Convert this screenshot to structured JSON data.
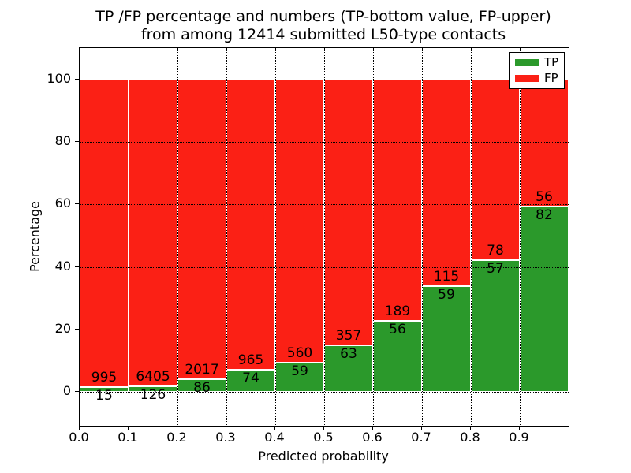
{
  "chart_data": {
    "type": "bar",
    "variant": "stacked-100-percent",
    "title": "TP /FP percentage and numbers (TP-bottom value, FP-upper)",
    "subtitle": "from among 12414 submitted L50-type contacts",
    "xlabel": "Predicted probability",
    "ylabel": "Percentage",
    "xlim": [
      0.0,
      1.0
    ],
    "ylim": [
      -11,
      110
    ],
    "x_tick_labels": [
      "0.0",
      "0.1",
      "0.2",
      "0.3",
      "0.4",
      "0.5",
      "0.6",
      "0.7",
      "0.8",
      "0.9"
    ],
    "y_ticks": [
      0,
      20,
      40,
      60,
      80,
      100
    ],
    "grid_style": "dotted",
    "bin_ranges": [
      "0.0-0.1",
      "0.1-0.2",
      "0.2-0.3",
      "0.3-0.4",
      "0.4-0.5",
      "0.5-0.6",
      "0.6-0.7",
      "0.7-0.8",
      "0.8-0.9",
      "0.9-1.0"
    ],
    "series": [
      {
        "name": "TP",
        "color": "#2b992b",
        "values": [
          15,
          126,
          86,
          74,
          59,
          63,
          56,
          59,
          57,
          82
        ]
      },
      {
        "name": "FP",
        "color": "#fb2015",
        "values": [
          995,
          6405,
          2017,
          965,
          560,
          357,
          189,
          115,
          78,
          56
        ]
      }
    ],
    "tp_percent_of_bin": [
      1.5,
      1.9,
      4.1,
      7.1,
      9.5,
      15.0,
      22.9,
      33.9,
      42.2,
      59.4
    ],
    "total_submitted": 12414,
    "legend": {
      "position": "upper-right",
      "entries": [
        {
          "label": "TP",
          "color": "#2b992b"
        },
        {
          "label": "FP",
          "color": "#fb2015"
        }
      ]
    },
    "colors": {
      "background": "#ffffff",
      "grid": "#000000",
      "text": "#000000"
    }
  }
}
